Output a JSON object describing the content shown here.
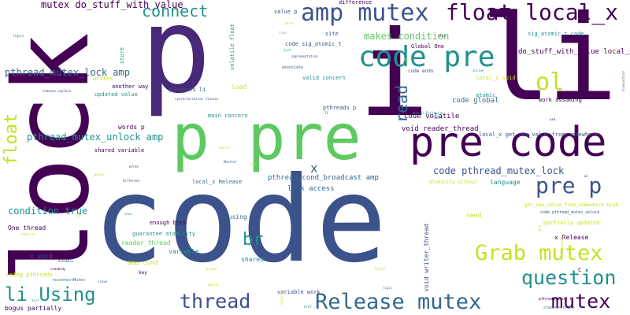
{
  "colors": {
    "deep_purple": "#440154",
    "indigo": "#3b528b",
    "teal": "#21918c",
    "green": "#5ec962",
    "yellow": "#c8e020",
    "navy": "#31688e",
    "dark_violet": "#482878"
  },
  "words": {
    "code_big": "code",
    "p_big": "p",
    "li_big": "li",
    "i_mid": "i",
    "lock": "lock",
    "p_pre": "p pre",
    "pre_code": "pre code",
    "code_pre": "code pre",
    "amp_mutex": "amp mutex",
    "float_local_x": "float local_x",
    "grab_mutex": "Grab mutex",
    "release_mutex": "Release mutex",
    "question": "question",
    "mutex": "mutex",
    "thread": "thread",
    "li_using": "li Using",
    "pre_p": "pre p",
    "ol": "ol",
    "br": "br",
    "connect": "connect",
    "float": "float",
    "read": "read",
    "x": "x",
    "mutex_do_stuff": "mutex do_stuff_with_value",
    "makes_condition": "makes condition",
    "pthread_mutex_lock_amp": "pthread_mutex_lock amp",
    "pthread_mutex_unlock_amp": "pthread_mutex_unlock amp",
    "condition_true": "condition true",
    "code_pthread_mutex_lock": "code pthread_mutex_lock",
    "pthread_cond_broadcast_amp": "pthread_cond_broadcast amp",
    "lock_access": "lock access",
    "void_reader_thread": "void reader_thread",
    "code_volatile": "code volatile",
    "code_global": "code global",
    "local_x_get_new": "local_x get_new_value_from_somewhere",
    "do_stuff_local_x": "do_stuff_with_value local_x",
    "sig_atomic_t_code": "sig_atomic_t code",
    "code_sig_atomic_t": "code sig_atomic_t",
    "global_one": "Global One",
    "value_p": "value p",
    "site": "site",
    "difference": "difference",
    "volatile_float": "volatile float",
    "store": "store",
    "writes": "writes",
    "updated_value": "updated value",
    "another_way": "another way",
    "purposes_li": "purposes li",
    "load": "load",
    "main_concern": "main concern",
    "valid_concern": "valid concern",
    "associate": "associate",
    "code_ends": "code ends",
    "local_x_void": "local_x void",
    "atomic": "atomic",
    "work_assuming": "work assuming",
    "pthreads_p": "pthreads p",
    "words_p": "words p",
    "shared_variable": "shared variable",
    "local_x_release": "local_x Release",
    "atomicity_without": "atomicity without",
    "language": "language",
    "one_thread": "One thread",
    "x_void": "x void",
    "using_pthreads": "using pthreads",
    "enough_bits": "enough bits",
    "guarantee_atomicity": "guarantee atomicity",
    "reader_thread": "reader_thread",
    "amp_cond": "amp cond",
    "variable": "variable",
    "c_using": "C using",
    "shared": "shared",
    "key": "key",
    "variable_work": "variable work",
    "need": "need",
    "partially_updated": "partially updated",
    "x_release": "x Release",
    "get_new_value_grab": "get_new_value_from_somewhere Grab",
    "code_pthread_mutex_unlock": "code pthread_mutex_unlock",
    "void_writer_thread": "void writer_thread",
    "bogus_partially": "bogus partially",
    "pthread_cond_t": "pthread_cond_t",
    "stackoverflow": "stackoverflow",
    "c": "C",
    "reconnectmutex": "reconnectMutex",
    "online": "online",
    "implementation": "implementation",
    "matter": "matter",
    "error": "error",
    "synchronization_classes": "synchronization classes",
    "mutual_exclusion": "Mutual Exclusion",
    "false": "false",
    "true": "true",
    "figure": "figure",
    "transaction": "transaction",
    "someone_explain": "someone explain",
    "guess": "guess",
    "different": "different",
    "seen": "seen",
    "familiar": "familiar",
    "database": "database",
    "somebody": "somebody",
    "slave": "slave",
    "running": "running",
    "master": "master",
    "href": "href",
    "select": "SELECT",
    "ul": "ul",
    "use": "use",
    "wait": "wait",
    "monitor": "Monitor",
    "proper": "proper",
    "also": "also",
    "ll": "ll",
    "yes": "yes",
    "mind": "mind",
    "just": "just",
    "test": "test",
    "run": "run",
    "safe": "safe",
    "logic": "logic",
    "atomic_small": "atomic",
    "signaling": "signaling"
  }
}
